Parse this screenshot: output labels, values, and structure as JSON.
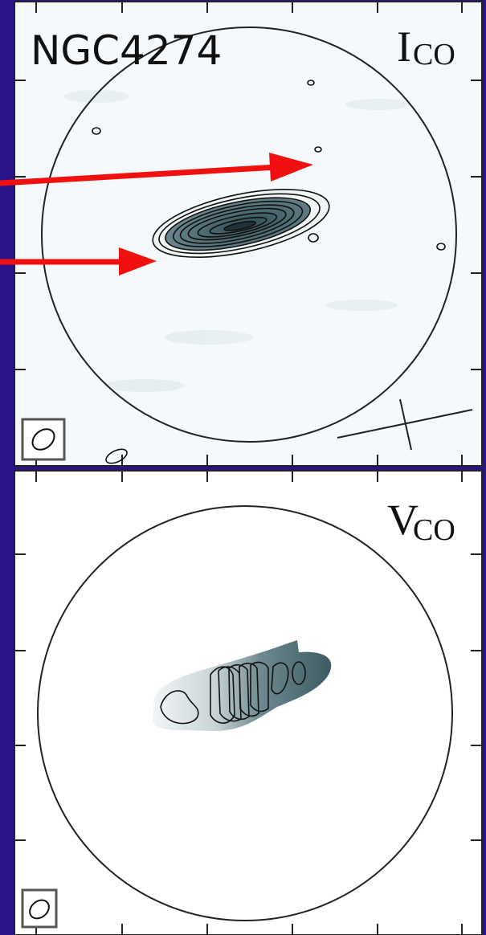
{
  "panels": [
    {
      "label": "NGC4274",
      "quantity": {
        "symbol": "I",
        "subscript": "CO"
      }
    },
    {
      "quantity": {
        "symbol": "V",
        "subscript": "CO"
      }
    }
  ]
}
